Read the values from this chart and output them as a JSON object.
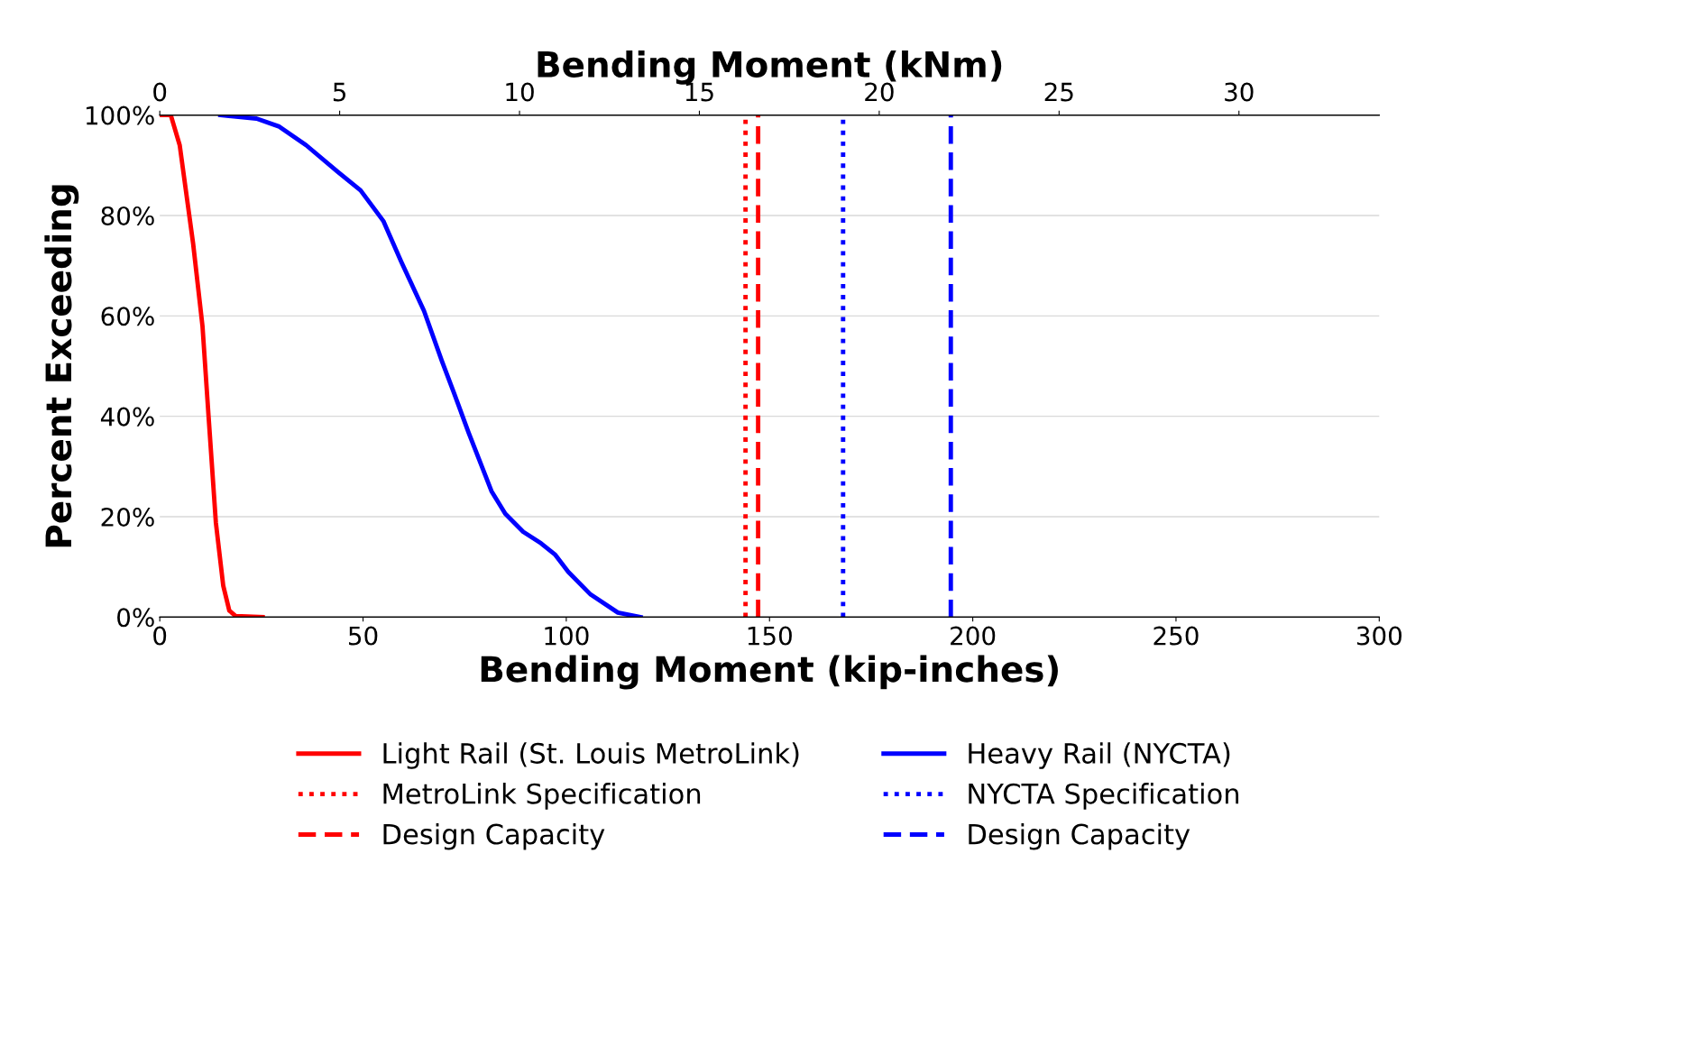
{
  "chart_data": {
    "type": "line",
    "xlabel": "Bending Moment (kip-inches)",
    "x2label": "Bending Moment (kNm)",
    "ylabel": "Percent Exceeding",
    "xlim": [
      0,
      300
    ],
    "xticks": [
      0,
      50,
      100,
      150,
      200,
      250,
      300
    ],
    "x2lim": [
      0,
      33.9
    ],
    "x2ticks": [
      0,
      5,
      10,
      15,
      20,
      25,
      30
    ],
    "ylim": [
      0,
      100
    ],
    "yticks": [
      {
        "value": 0,
        "label": "0%"
      },
      {
        "value": 20,
        "label": "20%"
      },
      {
        "value": 40,
        "label": "40%"
      },
      {
        "value": 60,
        "label": "60%"
      },
      {
        "value": 80,
        "label": "80%"
      },
      {
        "value": 100,
        "label": "100%"
      }
    ],
    "grid": "y",
    "legend": "bottom",
    "marker": "none",
    "series": [
      {
        "name": "Light Rail (St. Louis MetroLink)",
        "color": "#ff0000",
        "line_style": "solid",
        "x": [
          0,
          2.7,
          4.9,
          8.2,
          10.5,
          12,
          13.8,
          15.6,
          17.1,
          18.7,
          25.3
        ],
        "values": [
          100,
          100,
          94,
          74.4,
          58,
          40,
          18.8,
          6.3,
          1.3,
          0.2,
          0
        ]
      },
      {
        "name": "MetroLink Specification",
        "color": "#ff0000",
        "line_style": "dotted",
        "x": [
          144.1,
          144.1
        ],
        "values": [
          0,
          100
        ]
      },
      {
        "name": "Design Capacity",
        "color": "#ff0000",
        "line_style": "dashed",
        "x": [
          147.2,
          147.2
        ],
        "values": [
          0,
          100
        ]
      },
      {
        "name": "Heavy Rail (NYCTA)",
        "color": "#0000ff",
        "line_style": "solid",
        "x": [
          14.9,
          23.8,
          29.4,
          36,
          43.8,
          49.4,
          55,
          59.4,
          65,
          69.4,
          72.3,
          76,
          81.6,
          85,
          89.4,
          93.8,
          97.2,
          100.5,
          106,
          112.7,
          118.3
        ],
        "values": [
          100,
          99.3,
          97.7,
          94,
          88.7,
          85,
          78.9,
          70.8,
          61,
          51,
          44.8,
          36.7,
          25.1,
          20.6,
          17,
          14.7,
          12.5,
          9,
          4.5,
          0.9,
          0
        ]
      },
      {
        "name": "NYCTA Specification",
        "color": "#0000ff",
        "line_style": "dotted",
        "x": [
          168.1,
          168.1
        ],
        "values": [
          0,
          100
        ]
      },
      {
        "name": "Design Capacity",
        "color": "#0000ff",
        "line_style": "dashed",
        "x": [
          194.6,
          194.6
        ],
        "values": [
          0,
          100
        ]
      }
    ]
  }
}
